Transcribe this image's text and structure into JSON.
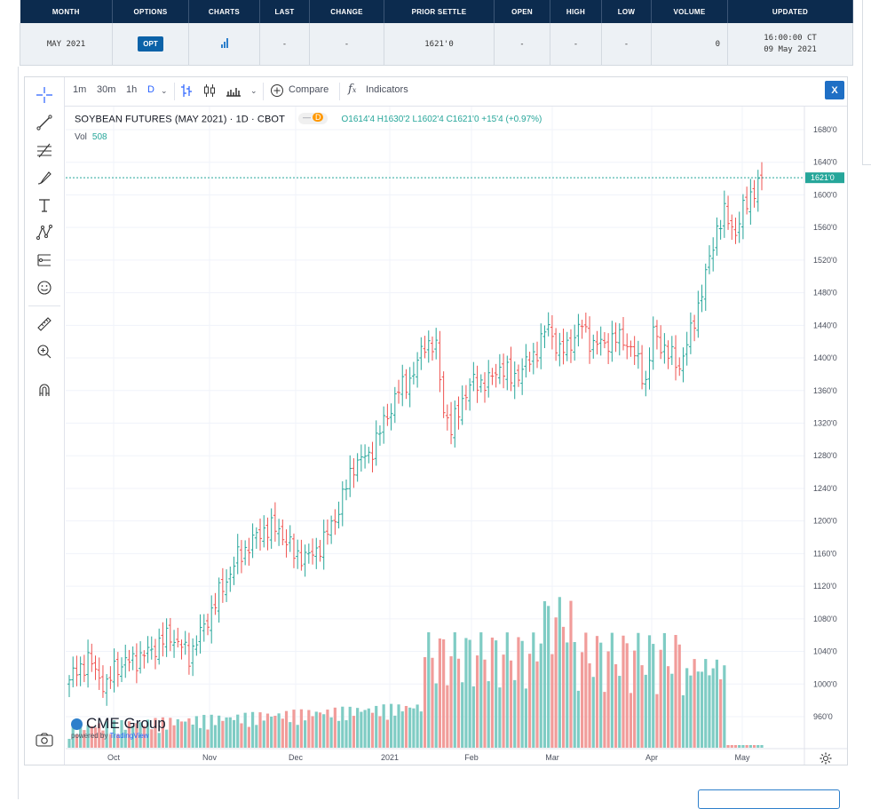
{
  "quote_table": {
    "headers": [
      "MONTH",
      "OPTIONS",
      "CHARTS",
      "LAST",
      "CHANGE",
      "PRIOR SETTLE",
      "OPEN",
      "HIGH",
      "LOW",
      "VOLUME",
      "UPDATED"
    ],
    "row": {
      "month": "MAY 2021",
      "options_label": "OPT",
      "charts_icon": "bar-chart-icon",
      "last": "-",
      "change": "-",
      "prior_settle": "1621'0",
      "open": "-",
      "high": "-",
      "low": "-",
      "volume": "0",
      "updated_time": "16:00:00 CT",
      "updated_date": "09 May 2021"
    }
  },
  "toolbar": {
    "intervals": [
      "1m",
      "30m",
      "1h"
    ],
    "active_interval": "D",
    "compare_label": "Compare",
    "indicators_label": "Indicators",
    "close_label": "X"
  },
  "legend": {
    "symbol": "SOYBEAN FUTURES (MAY 2021) · 1D · CBOT",
    "pill_dash": "—",
    "pill_d": "D",
    "ohlc": "O1614'4 H1630'2 L1602'4 C1621'0 +15'4 (+0.97%)",
    "vol_label": "Vol",
    "vol_value": "508"
  },
  "watermark": {
    "brand": "CME Group",
    "powered_prefix": "powered by",
    "powered_brand": "TradingView"
  },
  "colors": {
    "up": "#26a69a",
    "down": "#ef5350",
    "vol_up": "#7fccc4",
    "vol_down": "#f19c9a",
    "accent": "#2962ff",
    "header": "#0c2b4e"
  },
  "chart_data": {
    "type": "ohlc",
    "title": "SOYBEAN FUTURES (MAY 2021) · 1D · CBOT",
    "y_axis_ticks": [
      "1680'0",
      "1640'0",
      "1600'0",
      "1560'0",
      "1520'0",
      "1480'0",
      "1440'0",
      "1400'0",
      "1360'0",
      "1320'0",
      "1280'0",
      "1240'0",
      "1200'0",
      "1160'0",
      "1120'0",
      "1080'0",
      "1040'0",
      "1000'0",
      "960'0"
    ],
    "y_axis_values": [
      1680,
      1640,
      1600,
      1560,
      1520,
      1480,
      1440,
      1400,
      1360,
      1320,
      1280,
      1240,
      1200,
      1160,
      1120,
      1080,
      1040,
      1000,
      960
    ],
    "x_axis_labels": [
      "Oct",
      "Nov",
      "Dec",
      "2021",
      "Feb",
      "Mar",
      "Apr",
      "May"
    ],
    "ylim": [
      940,
      1700
    ],
    "last_price_label": "1621'0",
    "last_price": 1621,
    "close_anchors": [
      [
        0,
        1005
      ],
      [
        5,
        1030
      ],
      [
        10,
        995
      ],
      [
        12,
        1020
      ],
      [
        20,
        1035
      ],
      [
        27,
        1060
      ],
      [
        32,
        1035
      ],
      [
        36,
        1070
      ],
      [
        40,
        1110
      ],
      [
        45,
        1155
      ],
      [
        52,
        1190
      ],
      [
        56,
        1190
      ],
      [
        60,
        1160
      ],
      [
        64,
        1155
      ],
      [
        68,
        1175
      ],
      [
        72,
        1215
      ],
      [
        76,
        1270
      ],
      [
        80,
        1280
      ],
      [
        84,
        1320
      ],
      [
        88,
        1360
      ],
      [
        92,
        1380
      ],
      [
        95,
        1420
      ],
      [
        98,
        1410
      ],
      [
        100,
        1340
      ],
      [
        102,
        1310
      ],
      [
        105,
        1350
      ],
      [
        108,
        1370
      ],
      [
        112,
        1370
      ],
      [
        115,
        1390
      ],
      [
        118,
        1375
      ],
      [
        121,
        1385
      ],
      [
        125,
        1410
      ],
      [
        128,
        1440
      ],
      [
        131,
        1405
      ],
      [
        134,
        1420
      ],
      [
        137,
        1440
      ],
      [
        140,
        1415
      ],
      [
        144,
        1420
      ],
      [
        148,
        1425
      ],
      [
        152,
        1395
      ],
      [
        154,
        1370
      ],
      [
        156,
        1430
      ],
      [
        160,
        1405
      ],
      [
        163,
        1390
      ],
      [
        166,
        1430
      ],
      [
        168,
        1465
      ],
      [
        170,
        1500
      ],
      [
        173,
        1560
      ],
      [
        175,
        1575
      ],
      [
        178,
        1555
      ],
      [
        180,
        1580
      ],
      [
        182,
        1600
      ],
      [
        185,
        1621
      ]
    ],
    "bar_count": 186,
    "volume_note": "volume histogram, ~0-1,160 scale in lower pane",
    "grid": true
  }
}
